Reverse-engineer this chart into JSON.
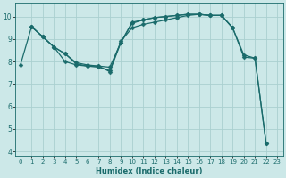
{
  "xlabel": "Humidex (Indice chaleur)",
  "bg_color": "#cce8e8",
  "grid_color": "#aad0d0",
  "line_color": "#1a6b6b",
  "xlim": [
    -0.5,
    23.5
  ],
  "ylim": [
    3.8,
    10.6
  ],
  "yticks": [
    4,
    5,
    6,
    7,
    8,
    9,
    10
  ],
  "xticks": [
    0,
    1,
    2,
    3,
    4,
    5,
    6,
    7,
    8,
    9,
    10,
    11,
    12,
    13,
    14,
    15,
    16,
    17,
    18,
    19,
    20,
    21,
    22,
    23
  ],
  "line1_x": [
    0,
    1,
    2,
    3,
    4,
    5,
    6,
    7,
    8,
    9,
    10,
    11,
    12,
    13,
    14,
    15,
    16,
    17,
    18,
    19,
    20,
    21,
    22
  ],
  "line1_y": [
    7.85,
    9.55,
    9.1,
    8.65,
    8.35,
    7.95,
    7.85,
    7.8,
    7.55,
    8.85,
    9.75,
    9.85,
    9.95,
    10.0,
    10.05,
    10.1,
    10.1,
    10.05,
    10.05,
    9.5,
    8.3,
    8.15,
    4.35
  ],
  "line2_x": [
    1,
    2,
    3,
    4,
    5,
    6,
    7,
    8,
    9,
    10,
    11,
    12,
    13,
    14,
    15,
    16,
    17,
    18,
    19
  ],
  "line2_y": [
    9.55,
    9.1,
    8.65,
    8.0,
    7.85,
    7.8,
    7.75,
    7.6,
    8.9,
    9.5,
    9.65,
    9.75,
    9.85,
    9.95,
    10.05,
    10.1,
    10.05,
    10.05,
    9.5
  ],
  "line3_x": [
    1,
    2,
    3,
    4,
    5,
    6,
    7,
    8,
    9,
    10,
    11,
    12,
    13,
    14,
    15,
    16,
    17,
    18,
    19,
    20,
    21,
    22
  ],
  "line3_y": [
    9.55,
    9.1,
    8.65,
    8.35,
    7.9,
    7.8,
    7.8,
    7.75,
    8.85,
    9.7,
    9.85,
    9.95,
    10.0,
    10.05,
    10.1,
    10.1,
    10.05,
    10.05,
    9.5,
    8.2,
    8.15,
    4.35
  ],
  "markersize": 2.5
}
